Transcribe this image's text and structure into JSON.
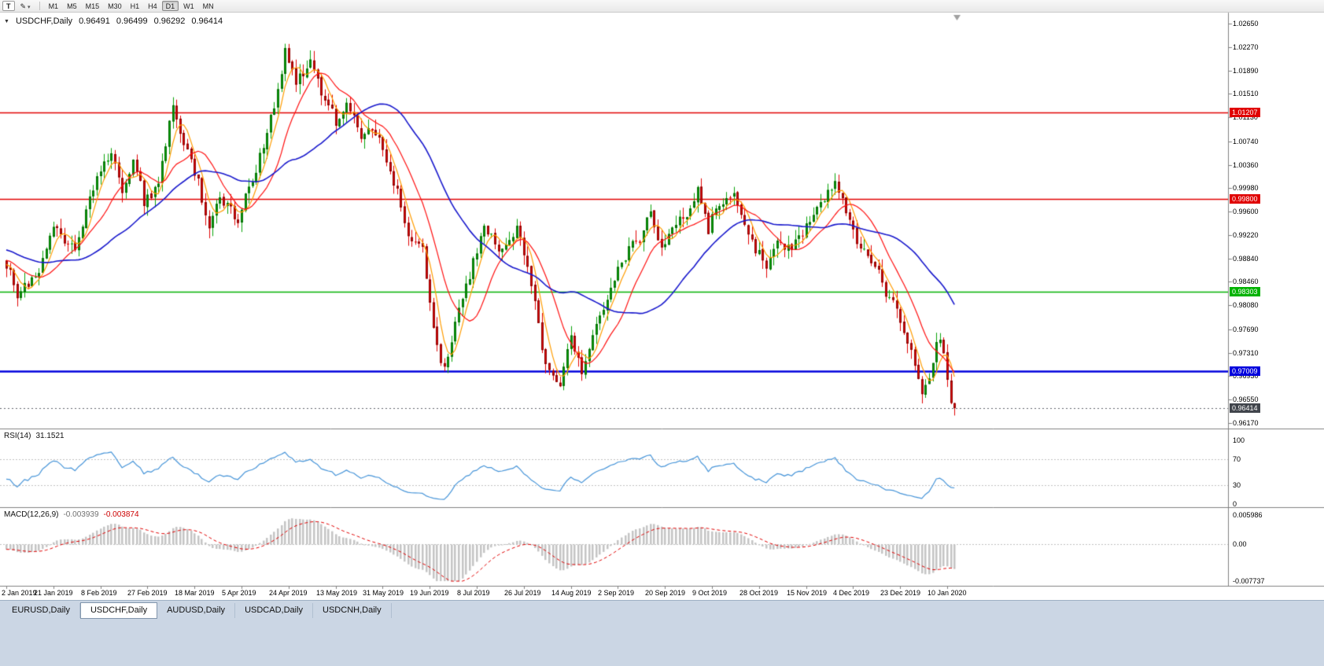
{
  "toolbar": {
    "chart_types_button": "T",
    "draw_button": "✎",
    "draw_dropdown_arrow": "▾",
    "timeframes": [
      "M1",
      "M5",
      "M15",
      "M30",
      "H1",
      "H4",
      "D1",
      "W1",
      "MN"
    ],
    "active_timeframe": "D1"
  },
  "symbol_panel": {
    "collapse_arrow": "▼",
    "title": "USDCHF,Daily",
    "open": "0.96491",
    "high": "0.96499",
    "low": "0.96292",
    "close": "0.96414"
  },
  "rsi_panel": {
    "title": "RSI(14)",
    "value": "31.1521"
  },
  "macd_panel": {
    "title": "MACD(12,26,9)",
    "value_main": "-0.003939",
    "value_signal": "-0.003874"
  },
  "tabs": {
    "items": [
      {
        "label": "EURUSD,Daily",
        "active": false
      },
      {
        "label": "USDCHF,Daily",
        "active": true
      },
      {
        "label": "AUDUSD,Daily",
        "active": false
      },
      {
        "label": "USDCAD,Daily",
        "active": false
      },
      {
        "label": "USDCNH,Daily",
        "active": false
      }
    ]
  },
  "chart_data": {
    "type": "candlestick",
    "symbol": "USDCHF",
    "timeframe": "Daily",
    "ohlc_display": {
      "open": 0.96491,
      "high": 0.96499,
      "low": 0.96292,
      "close": 0.96414
    },
    "price_axis": {
      "top_value": 1.0265,
      "bottom_value": 0.9617,
      "ticks": [
        "1.02650",
        "1.02270",
        "1.01890",
        "1.01510",
        "1.01130",
        "1.00740",
        "1.00360",
        "0.99980",
        "0.99600",
        "0.99220",
        "0.98840",
        "0.98460",
        "0.98080",
        "0.97690",
        "0.97310",
        "0.96930",
        "0.96550",
        "0.96170"
      ]
    },
    "horizontal_lines": [
      {
        "price": 1.01207,
        "label": "1.01207",
        "color": "#e00000",
        "width": 1.6
      },
      {
        "price": 0.998,
        "label": "0.99800",
        "color": "#e00000",
        "width": 1.6
      },
      {
        "price": 0.98303,
        "label": "0.98303",
        "color": "#00b200",
        "width": 1.6
      },
      {
        "price": 0.97009,
        "label": "0.97009",
        "color": "#0000dd",
        "width": 2.4
      }
    ],
    "current_price": {
      "value": 0.96414,
      "label": "0.96414",
      "color": "#41454c"
    },
    "colors": {
      "up": "#0aa30a",
      "up_edge": "#056e05",
      "down": "#e00505",
      "down_edge": "#8e0404",
      "background": "#ffffff"
    },
    "moving_averages": [
      {
        "name": "fast-ma",
        "color": "#ff9c00",
        "estimated_period": 5,
        "width": 1.2
      },
      {
        "name": "mid-ma",
        "color": "#ff1010",
        "estimated_period": 13,
        "width": 1.2
      },
      {
        "name": "slow-ma",
        "color": "#1818cc",
        "estimated_period": 34,
        "width": 1.6
      }
    ],
    "date_axis": [
      {
        "label": "2 Jan 2019",
        "day": 0
      },
      {
        "label": "21 Jan 2019",
        "day": 13
      },
      {
        "label": "8 Feb 2019",
        "day": 26
      },
      {
        "label": "27 Feb 2019",
        "day": 39
      },
      {
        "label": "18 Mar 2019",
        "day": 52
      },
      {
        "label": "5 Apr 2019",
        "day": 65
      },
      {
        "label": "24 Apr 2019",
        "day": 78
      },
      {
        "label": "13 May 2019",
        "day": 91
      },
      {
        "label": "31 May 2019",
        "day": 104
      },
      {
        "label": "19 Jun 2019",
        "day": 117
      },
      {
        "label": "8 Jul 2019",
        "day": 130
      },
      {
        "label": "26 Jul 2019",
        "day": 143
      },
      {
        "label": "14 Aug 2019",
        "day": 156
      },
      {
        "label": "2 Sep 2019",
        "day": 169
      },
      {
        "label": "20 Sep 2019",
        "day": 182
      },
      {
        "label": "9 Oct 2019",
        "day": 195
      },
      {
        "label": "28 Oct 2019",
        "day": 208
      },
      {
        "label": "15 Nov 2019",
        "day": 221
      },
      {
        "label": "4 Dec 2019",
        "day": 234
      },
      {
        "label": "23 Dec 2019",
        "day": 247
      },
      {
        "label": "10 Jan 2020",
        "day": 260
      }
    ],
    "price_keypoints": [
      [
        -60,
        0.998
      ],
      [
        -40,
        0.994
      ],
      [
        -20,
        0.99
      ],
      [
        -5,
        0.988
      ],
      [
        0,
        0.987
      ],
      [
        3,
        0.9825
      ],
      [
        8,
        0.985
      ],
      [
        13,
        0.993
      ],
      [
        19,
        0.99
      ],
      [
        24,
        1.0
      ],
      [
        29,
        1.006
      ],
      [
        32,
        0.9985
      ],
      [
        35,
        1.005
      ],
      [
        38,
        0.9975
      ],
      [
        42,
        1.0005
      ],
      [
        46,
        1.0135
      ],
      [
        49,
        1.0065
      ],
      [
        53,
        1.0005
      ],
      [
        56,
        0.9935
      ],
      [
        59,
        0.9985
      ],
      [
        64,
        0.9945
      ],
      [
        68,
        1.001
      ],
      [
        72,
        1.008
      ],
      [
        77,
        1.0215
      ],
      [
        80,
        1.0175
      ],
      [
        84,
        1.0205
      ],
      [
        87,
        1.015
      ],
      [
        91,
        1.011
      ],
      [
        94,
        1.0135
      ],
      [
        98,
        1.008
      ],
      [
        102,
        1.009
      ],
      [
        105,
        1.004
      ],
      [
        108,
        0.999
      ],
      [
        111,
        0.9925
      ],
      [
        115,
        0.9905
      ],
      [
        118,
        0.977
      ],
      [
        121,
        0.97
      ],
      [
        124,
        0.9775
      ],
      [
        128,
        0.986
      ],
      [
        132,
        0.994
      ],
      [
        137,
        0.9895
      ],
      [
        141,
        0.993
      ],
      [
        146,
        0.982
      ],
      [
        149,
        0.9705
      ],
      [
        153,
        0.968
      ],
      [
        156,
        0.9755
      ],
      [
        159,
        0.97
      ],
      [
        164,
        0.979
      ],
      [
        167,
        0.983
      ],
      [
        170,
        0.988
      ],
      [
        175,
        0.992
      ],
      [
        178,
        0.9955
      ],
      [
        181,
        0.9905
      ],
      [
        184,
        0.993
      ],
      [
        188,
        0.996
      ],
      [
        191,
        0.999
      ],
      [
        194,
        0.9935
      ],
      [
        197,
        0.9975
      ],
      [
        201,
        0.999
      ],
      [
        204,
        0.994
      ],
      [
        207,
        0.99
      ],
      [
        210,
        0.986
      ],
      [
        213,
        0.9915
      ],
      [
        217,
        0.9895
      ],
      [
        220,
        0.9925
      ],
      [
        223,
        0.9955
      ],
      [
        226,
        0.9985
      ],
      [
        229,
        1.001
      ],
      [
        232,
        0.996
      ],
      [
        235,
        0.9905
      ],
      [
        238,
        0.989
      ],
      [
        242,
        0.9845
      ],
      [
        246,
        0.98
      ],
      [
        250,
        0.973
      ],
      [
        253,
        0.967
      ],
      [
        255,
        0.969
      ],
      [
        257,
        0.9745
      ],
      [
        258,
        0.9755
      ],
      [
        259,
        0.973
      ],
      [
        260,
        0.969
      ],
      [
        261,
        0.9649
      ],
      [
        262,
        0.96414
      ]
    ],
    "rsi": {
      "period": 14,
      "last_value": 31.1521,
      "color": "#4694d8",
      "levels": [
        30,
        70
      ],
      "axis_ticks": [
        {
          "v": 100,
          "label": "100"
        },
        {
          "v": 70,
          "label": "70"
        },
        {
          "v": 30,
          "label": "30"
        },
        {
          "v": 0,
          "label": "0"
        }
      ]
    },
    "macd": {
      "fast": 12,
      "slow": 26,
      "signal": 9,
      "last_main": -0.003939,
      "last_signal": -0.003874,
      "hist_fill": "#c4c4c4",
      "hist_edge": "#9e9e9e",
      "signal_color": "#e00000",
      "axis_ticks": [
        {
          "v": 0.005986,
          "label": "0.005986"
        },
        {
          "v": 0,
          "label": "0.00"
        },
        {
          "v": -0.007737,
          "label": "-0.007737"
        }
      ]
    }
  }
}
